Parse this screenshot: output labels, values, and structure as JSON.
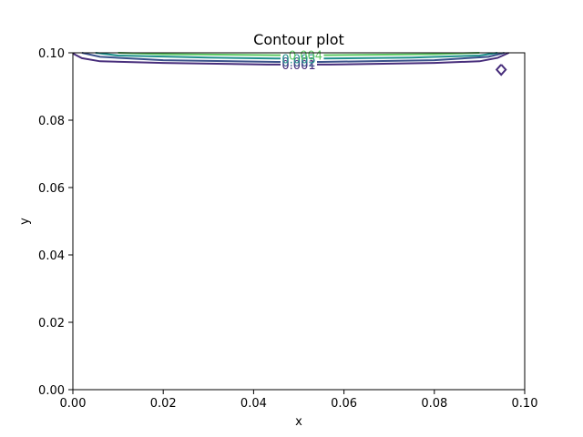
{
  "chart_data": {
    "type": "contour",
    "title": "Contour plot",
    "xlabel": "x",
    "ylabel": "y",
    "xlim": [
      0.0,
      0.1
    ],
    "ylim": [
      0.0,
      0.1
    ],
    "xticks": [
      "0.00",
      "0.02",
      "0.04",
      "0.06",
      "0.08",
      "0.10"
    ],
    "yticks": [
      "0.00",
      "0.02",
      "0.04",
      "0.06",
      "0.08",
      "0.10"
    ],
    "grid": false,
    "colormap": "viridis",
    "levels": [
      {
        "value": 0.001,
        "label": "0.001",
        "color": "#472d7b",
        "label_at": [
          0.05,
          0.0965
        ],
        "path": [
          [
            0.0,
            0.0998
          ],
          [
            0.002,
            0.0984
          ],
          [
            0.006,
            0.0975
          ],
          [
            0.02,
            0.097
          ],
          [
            0.043,
            0.0965
          ],
          [
            0.057,
            0.0965
          ],
          [
            0.08,
            0.097
          ],
          [
            0.09,
            0.0975
          ],
          [
            0.094,
            0.0985
          ],
          [
            0.0965,
            0.1
          ]
        ]
      },
      {
        "value": 0.002,
        "label": "0.002",
        "color": "#3b528b",
        "label_at": [
          0.05,
          0.0973
        ],
        "path": [
          [
            0.002,
            0.1
          ],
          [
            0.006,
            0.0988
          ],
          [
            0.02,
            0.0978
          ],
          [
            0.045,
            0.0973
          ],
          [
            0.055,
            0.0973
          ],
          [
            0.08,
            0.0978
          ],
          [
            0.092,
            0.0988
          ],
          [
            0.0955,
            0.1
          ]
        ]
      },
      {
        "value": 0.003,
        "label": "0.003",
        "color": "#21918c",
        "label_at": [
          0.05,
          0.0983
        ],
        "path": [
          [
            0.005,
            0.1
          ],
          [
            0.01,
            0.0992
          ],
          [
            0.03,
            0.0986
          ],
          [
            0.045,
            0.0983
          ],
          [
            0.055,
            0.0983
          ],
          [
            0.075,
            0.0986
          ],
          [
            0.09,
            0.0992
          ],
          [
            0.094,
            0.1
          ]
        ]
      },
      {
        "value": 0.004,
        "label": "0.004",
        "color": "#5ec962",
        "label_at": [
          0.0515,
          0.0993
        ],
        "path": [
          [
            0.01,
            0.1
          ],
          [
            0.02,
            0.0996
          ],
          [
            0.045,
            0.0993
          ],
          [
            0.055,
            0.0993
          ],
          [
            0.08,
            0.0996
          ],
          [
            0.09,
            0.1
          ]
        ]
      }
    ],
    "extra_contours": [
      {
        "value": 0.001,
        "color": "#472d7b",
        "path": [
          [
            0.0948,
            0.0965
          ],
          [
            0.0958,
            0.095
          ],
          [
            0.0948,
            0.0935
          ],
          [
            0.0938,
            0.095
          ],
          [
            0.0948,
            0.0965
          ]
        ]
      }
    ]
  }
}
